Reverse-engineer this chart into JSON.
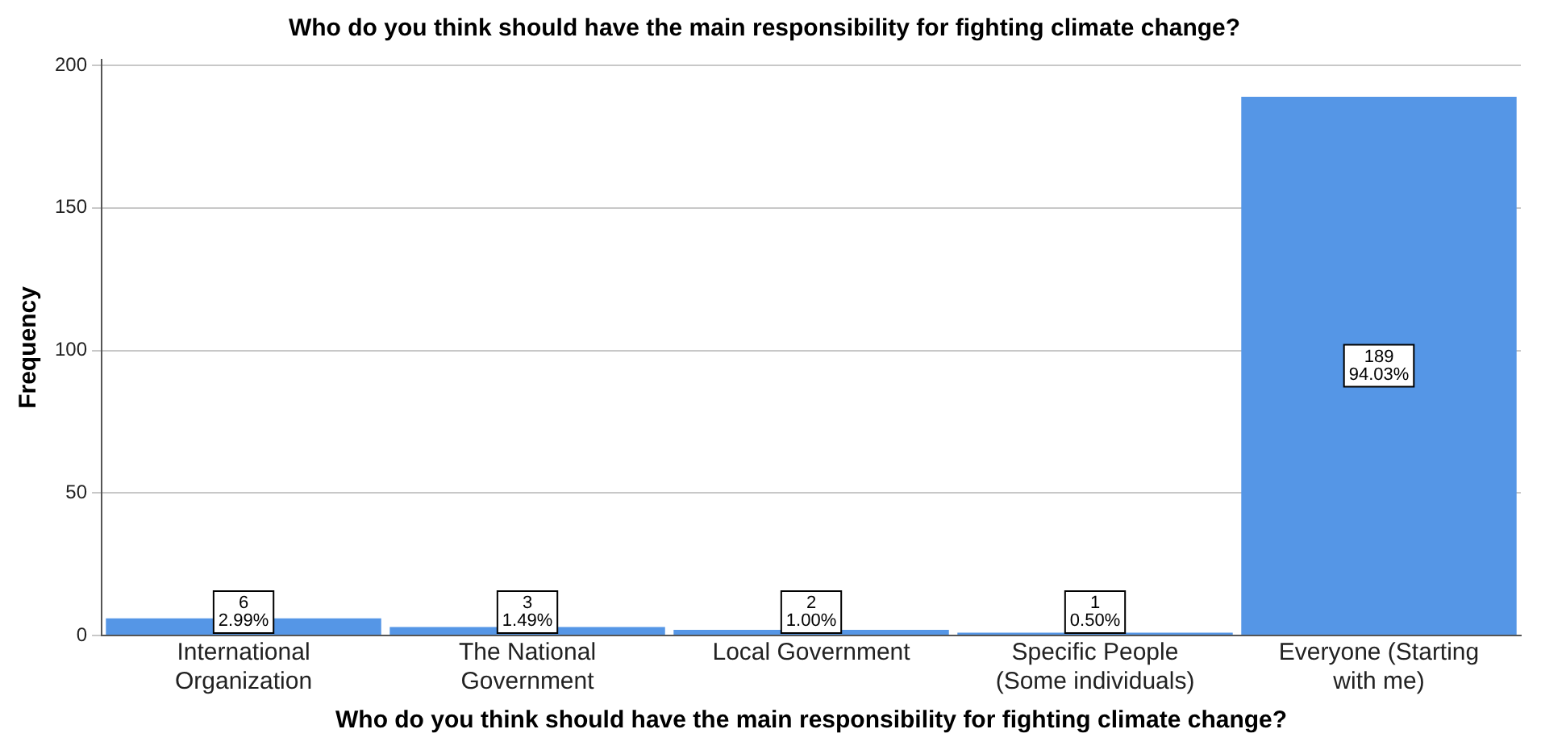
{
  "chart_data": {
    "type": "bar",
    "title": "Who do you think should have the main responsibility for fighting climate change?",
    "xlabel": "Who do you think should have the main responsibility for fighting climate change?",
    "ylabel": "Frequency",
    "categories": [
      "International Organization",
      "The National Government",
      "Local Government",
      "Specific People (Some individuals)",
      "Everyone (Starting with me)"
    ],
    "values": [
      6,
      3,
      2,
      1,
      189
    ],
    "value_labels": [
      "6\n2.99%",
      "3\n1.49%",
      "2\n1.00%",
      "1\n0.50%",
      "189\n94.03%"
    ],
    "color": "#5596e6",
    "ylim": [
      0,
      202
    ],
    "yticks": [
      0,
      50,
      100,
      150,
      200
    ],
    "grid": "y",
    "legend": false
  }
}
